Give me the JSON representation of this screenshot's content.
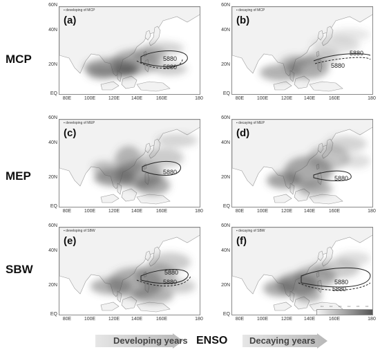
{
  "rows": [
    {
      "label": "MCP",
      "panels": [
        {
          "letter": "(a)",
          "note": "developing of MCP",
          "contour_labels": [
            "5880",
            "5880"
          ]
        },
        {
          "letter": "(b)",
          "note": "decaying of MCP",
          "contour_labels": [
            "5880",
            "5880"
          ]
        }
      ]
    },
    {
      "label": "MEP",
      "panels": [
        {
          "letter": "(c)",
          "note": "developing of MEP",
          "contour_labels": [
            "5880"
          ]
        },
        {
          "letter": "(d)",
          "note": "decaying of MEP",
          "contour_labels": [
            "5880"
          ]
        }
      ]
    },
    {
      "label": "SBW",
      "panels": [
        {
          "letter": "(e)",
          "note": "developing of SBW",
          "contour_labels": [
            "5880",
            "5880"
          ]
        },
        {
          "letter": "(f)",
          "note": "decaying of SBW",
          "contour_labels": [
            "5880",
            "5880"
          ]
        }
      ]
    }
  ],
  "lat_ticks": [
    "60N",
    "40N",
    "20N",
    "EQ"
  ],
  "lon_ticks": [
    "80E",
    "100E",
    "120E",
    "140E",
    "160E",
    "180"
  ],
  "colorbar_ticks": [
    "0.1",
    "0.2",
    "0.3",
    "0.4",
    "0.5",
    "0.6"
  ],
  "footer": {
    "developing": "Developing years",
    "center": "ENSO",
    "decaying": "Decaying years"
  }
}
